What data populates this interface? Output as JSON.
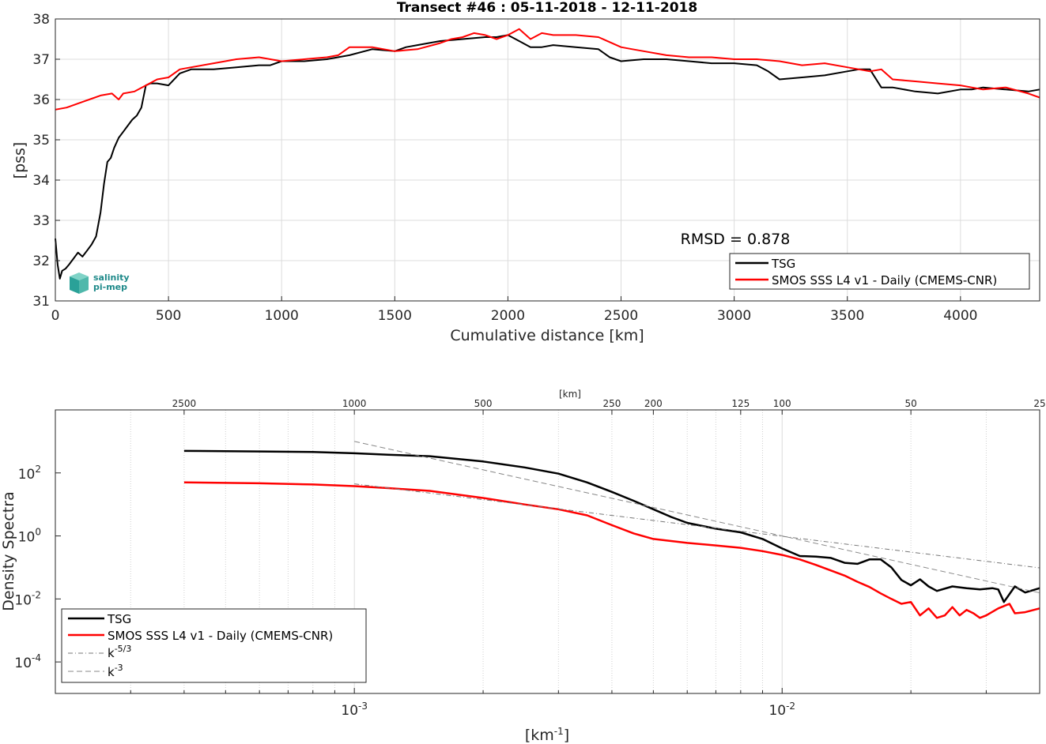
{
  "chart_data": [
    {
      "type": "line",
      "title": "Transect #46 : 05-11-2018 - 12-11-2018",
      "xlabel": "Cumulative distance [km]",
      "ylabel": "[pss]",
      "xlim": [
        0,
        4350
      ],
      "ylim": [
        31,
        38
      ],
      "xticks": [
        0,
        500,
        1000,
        1500,
        2000,
        2500,
        3000,
        3500,
        4000
      ],
      "yticks": [
        31,
        32,
        33,
        34,
        35,
        36,
        37,
        38
      ],
      "grid": true,
      "legend_position": "bottom-right",
      "annotation": "RMSD = 0.878",
      "logo": {
        "line1": "salinity",
        "line2": "pi-mep"
      },
      "series": [
        {
          "name": "TSG",
          "color": "#000000",
          "x": [
            0,
            10,
            20,
            30,
            45,
            60,
            80,
            100,
            120,
            140,
            160,
            180,
            200,
            215,
            230,
            245,
            260,
            280,
            300,
            320,
            340,
            360,
            380,
            400,
            420,
            450,
            500,
            550,
            600,
            700,
            800,
            900,
            950,
            1000,
            1100,
            1200,
            1300,
            1400,
            1500,
            1550,
            1600,
            1700,
            1800,
            1900,
            1950,
            2000,
            2050,
            2100,
            2150,
            2200,
            2300,
            2400,
            2450,
            2500,
            2600,
            2700,
            2800,
            2900,
            3000,
            3100,
            3150,
            3200,
            3300,
            3400,
            3500,
            3550,
            3600,
            3650,
            3700,
            3800,
            3900,
            4000,
            4050,
            4100,
            4200,
            4300,
            4350
          ],
          "y": [
            32.55,
            31.9,
            31.55,
            31.75,
            31.8,
            31.9,
            32.05,
            32.2,
            32.1,
            32.25,
            32.4,
            32.6,
            33.2,
            33.9,
            34.45,
            34.55,
            34.8,
            35.05,
            35.2,
            35.35,
            35.5,
            35.6,
            35.8,
            36.35,
            36.4,
            36.4,
            36.35,
            36.65,
            36.75,
            36.75,
            36.8,
            36.85,
            36.85,
            36.95,
            36.95,
            37.0,
            37.1,
            37.25,
            37.2,
            37.3,
            37.35,
            37.45,
            37.5,
            37.55,
            37.55,
            37.6,
            37.45,
            37.3,
            37.3,
            37.35,
            37.3,
            37.25,
            37.05,
            36.95,
            37.0,
            37.0,
            36.95,
            36.9,
            36.9,
            36.85,
            36.7,
            36.5,
            36.55,
            36.6,
            36.7,
            36.75,
            36.75,
            36.3,
            36.3,
            36.2,
            36.15,
            36.25,
            36.25,
            36.3,
            36.25,
            36.2,
            36.25
          ]
        },
        {
          "name": "SMOS SSS L4 v1 - Daily (CMEMS-CNR)",
          "color": "#ff0000",
          "x": [
            0,
            50,
            100,
            150,
            200,
            250,
            280,
            300,
            350,
            400,
            450,
            500,
            550,
            600,
            700,
            800,
            900,
            1000,
            1100,
            1200,
            1250,
            1300,
            1400,
            1500,
            1600,
            1700,
            1750,
            1800,
            1850,
            1900,
            1950,
            2000,
            2050,
            2100,
            2150,
            2200,
            2300,
            2400,
            2500,
            2550,
            2600,
            2700,
            2800,
            2900,
            3000,
            3100,
            3200,
            3300,
            3400,
            3500,
            3600,
            3650,
            3700,
            3800,
            3900,
            4000,
            4100,
            4200,
            4300,
            4350
          ],
          "y": [
            35.75,
            35.8,
            35.9,
            36.0,
            36.1,
            36.15,
            36.0,
            36.15,
            36.2,
            36.35,
            36.5,
            36.55,
            36.75,
            36.8,
            36.9,
            37.0,
            37.05,
            36.95,
            37.0,
            37.05,
            37.1,
            37.3,
            37.3,
            37.2,
            37.25,
            37.4,
            37.5,
            37.55,
            37.65,
            37.6,
            37.5,
            37.6,
            37.75,
            37.5,
            37.65,
            37.6,
            37.6,
            37.55,
            37.3,
            37.25,
            37.2,
            37.1,
            37.05,
            37.05,
            37.0,
            37.0,
            36.95,
            36.85,
            36.9,
            36.8,
            36.7,
            36.75,
            36.5,
            36.45,
            36.4,
            36.35,
            36.25,
            36.3,
            36.15,
            36.05
          ]
        }
      ]
    },
    {
      "type": "line",
      "xlabel": "[km",
      "xlabel_sup": "-1",
      "xlabel_tail": "]",
      "ylabel": "Density Spectra",
      "top_axis_label": "[km]",
      "x_scale": "log",
      "y_scale": "log",
      "xlim": [
        0.0002,
        0.04
      ],
      "ylim": [
        1e-05,
        10000
      ],
      "xticks": [
        0.001,
        0.01
      ],
      "xtick_labels": [
        {
          "base": "10",
          "exp": "-3"
        },
        {
          "base": "10",
          "exp": "-2"
        }
      ],
      "yticks": [
        0.0001,
        0.01,
        1,
        100
      ],
      "ytick_labels": [
        {
          "base": "10",
          "exp": "-4"
        },
        {
          "base": "10",
          "exp": "-2"
        },
        {
          "base": "10",
          "exp": "0"
        },
        {
          "base": "10",
          "exp": "2"
        }
      ],
      "top_ticks": [
        2500,
        1000,
        500,
        250,
        200,
        125,
        100,
        50,
        25
      ],
      "grid": true,
      "legend_position": "bottom-left",
      "series": [
        {
          "name": "TSG",
          "color": "#000000",
          "x": [
            0.0004,
            0.0006,
            0.0008,
            0.001,
            0.0012,
            0.0015,
            0.002,
            0.0025,
            0.003,
            0.0035,
            0.004,
            0.0045,
            0.005,
            0.0055,
            0.006,
            0.007,
            0.008,
            0.009,
            0.01,
            0.011,
            0.012,
            0.013,
            0.014,
            0.015,
            0.016,
            0.017,
            0.018,
            0.019,
            0.02,
            0.021,
            0.022,
            0.023,
            0.025,
            0.027,
            0.029,
            0.031,
            0.032,
            0.033,
            0.035,
            0.037,
            0.04
          ],
          "y": [
            500,
            480,
            460,
            420,
            380,
            340,
            230,
            150,
            95,
            50,
            25,
            13,
            7,
            4,
            2.6,
            1.7,
            1.3,
            0.8,
            0.4,
            0.23,
            0.22,
            0.2,
            0.14,
            0.13,
            0.18,
            0.18,
            0.1,
            0.04,
            0.027,
            0.042,
            0.025,
            0.018,
            0.025,
            0.022,
            0.02,
            0.022,
            0.02,
            0.008,
            0.025,
            0.016,
            0.022
          ]
        },
        {
          "name": "SMOS SSS L4 v1 - Daily (CMEMS-CNR)",
          "color": "#ff0000",
          "x": [
            0.0004,
            0.0006,
            0.0008,
            0.001,
            0.0012,
            0.0015,
            0.002,
            0.0025,
            0.003,
            0.0035,
            0.004,
            0.0045,
            0.005,
            0.006,
            0.007,
            0.008,
            0.009,
            0.01,
            0.011,
            0.012,
            0.013,
            0.014,
            0.015,
            0.016,
            0.017,
            0.018,
            0.019,
            0.02,
            0.021,
            0.022,
            0.023,
            0.024,
            0.025,
            0.026,
            0.027,
            0.028,
            0.029,
            0.03,
            0.032,
            0.034,
            0.035,
            0.037,
            0.04
          ],
          "y": [
            50,
            47,
            43,
            38,
            33,
            27,
            16,
            10,
            7,
            4.5,
            2.2,
            1.2,
            0.8,
            0.6,
            0.5,
            0.42,
            0.33,
            0.25,
            0.18,
            0.12,
            0.08,
            0.055,
            0.035,
            0.024,
            0.015,
            0.01,
            0.007,
            0.008,
            0.003,
            0.005,
            0.0025,
            0.003,
            0.0055,
            0.003,
            0.0045,
            0.0035,
            0.0025,
            0.003,
            0.005,
            0.007,
            0.0035,
            0.0038,
            0.005
          ]
        },
        {
          "name": "k",
          "name_sup": "-5/3",
          "color": "#777777",
          "style": "dashdot",
          "x": [
            0.001,
            0.04
          ],
          "y": [
            45,
            0.097
          ]
        },
        {
          "name": "k",
          "name_sup": "-3",
          "color": "#888888",
          "style": "dashed",
          "x": [
            0.001,
            0.04
          ],
          "y": [
            1000,
            0.0156
          ]
        }
      ]
    }
  ]
}
